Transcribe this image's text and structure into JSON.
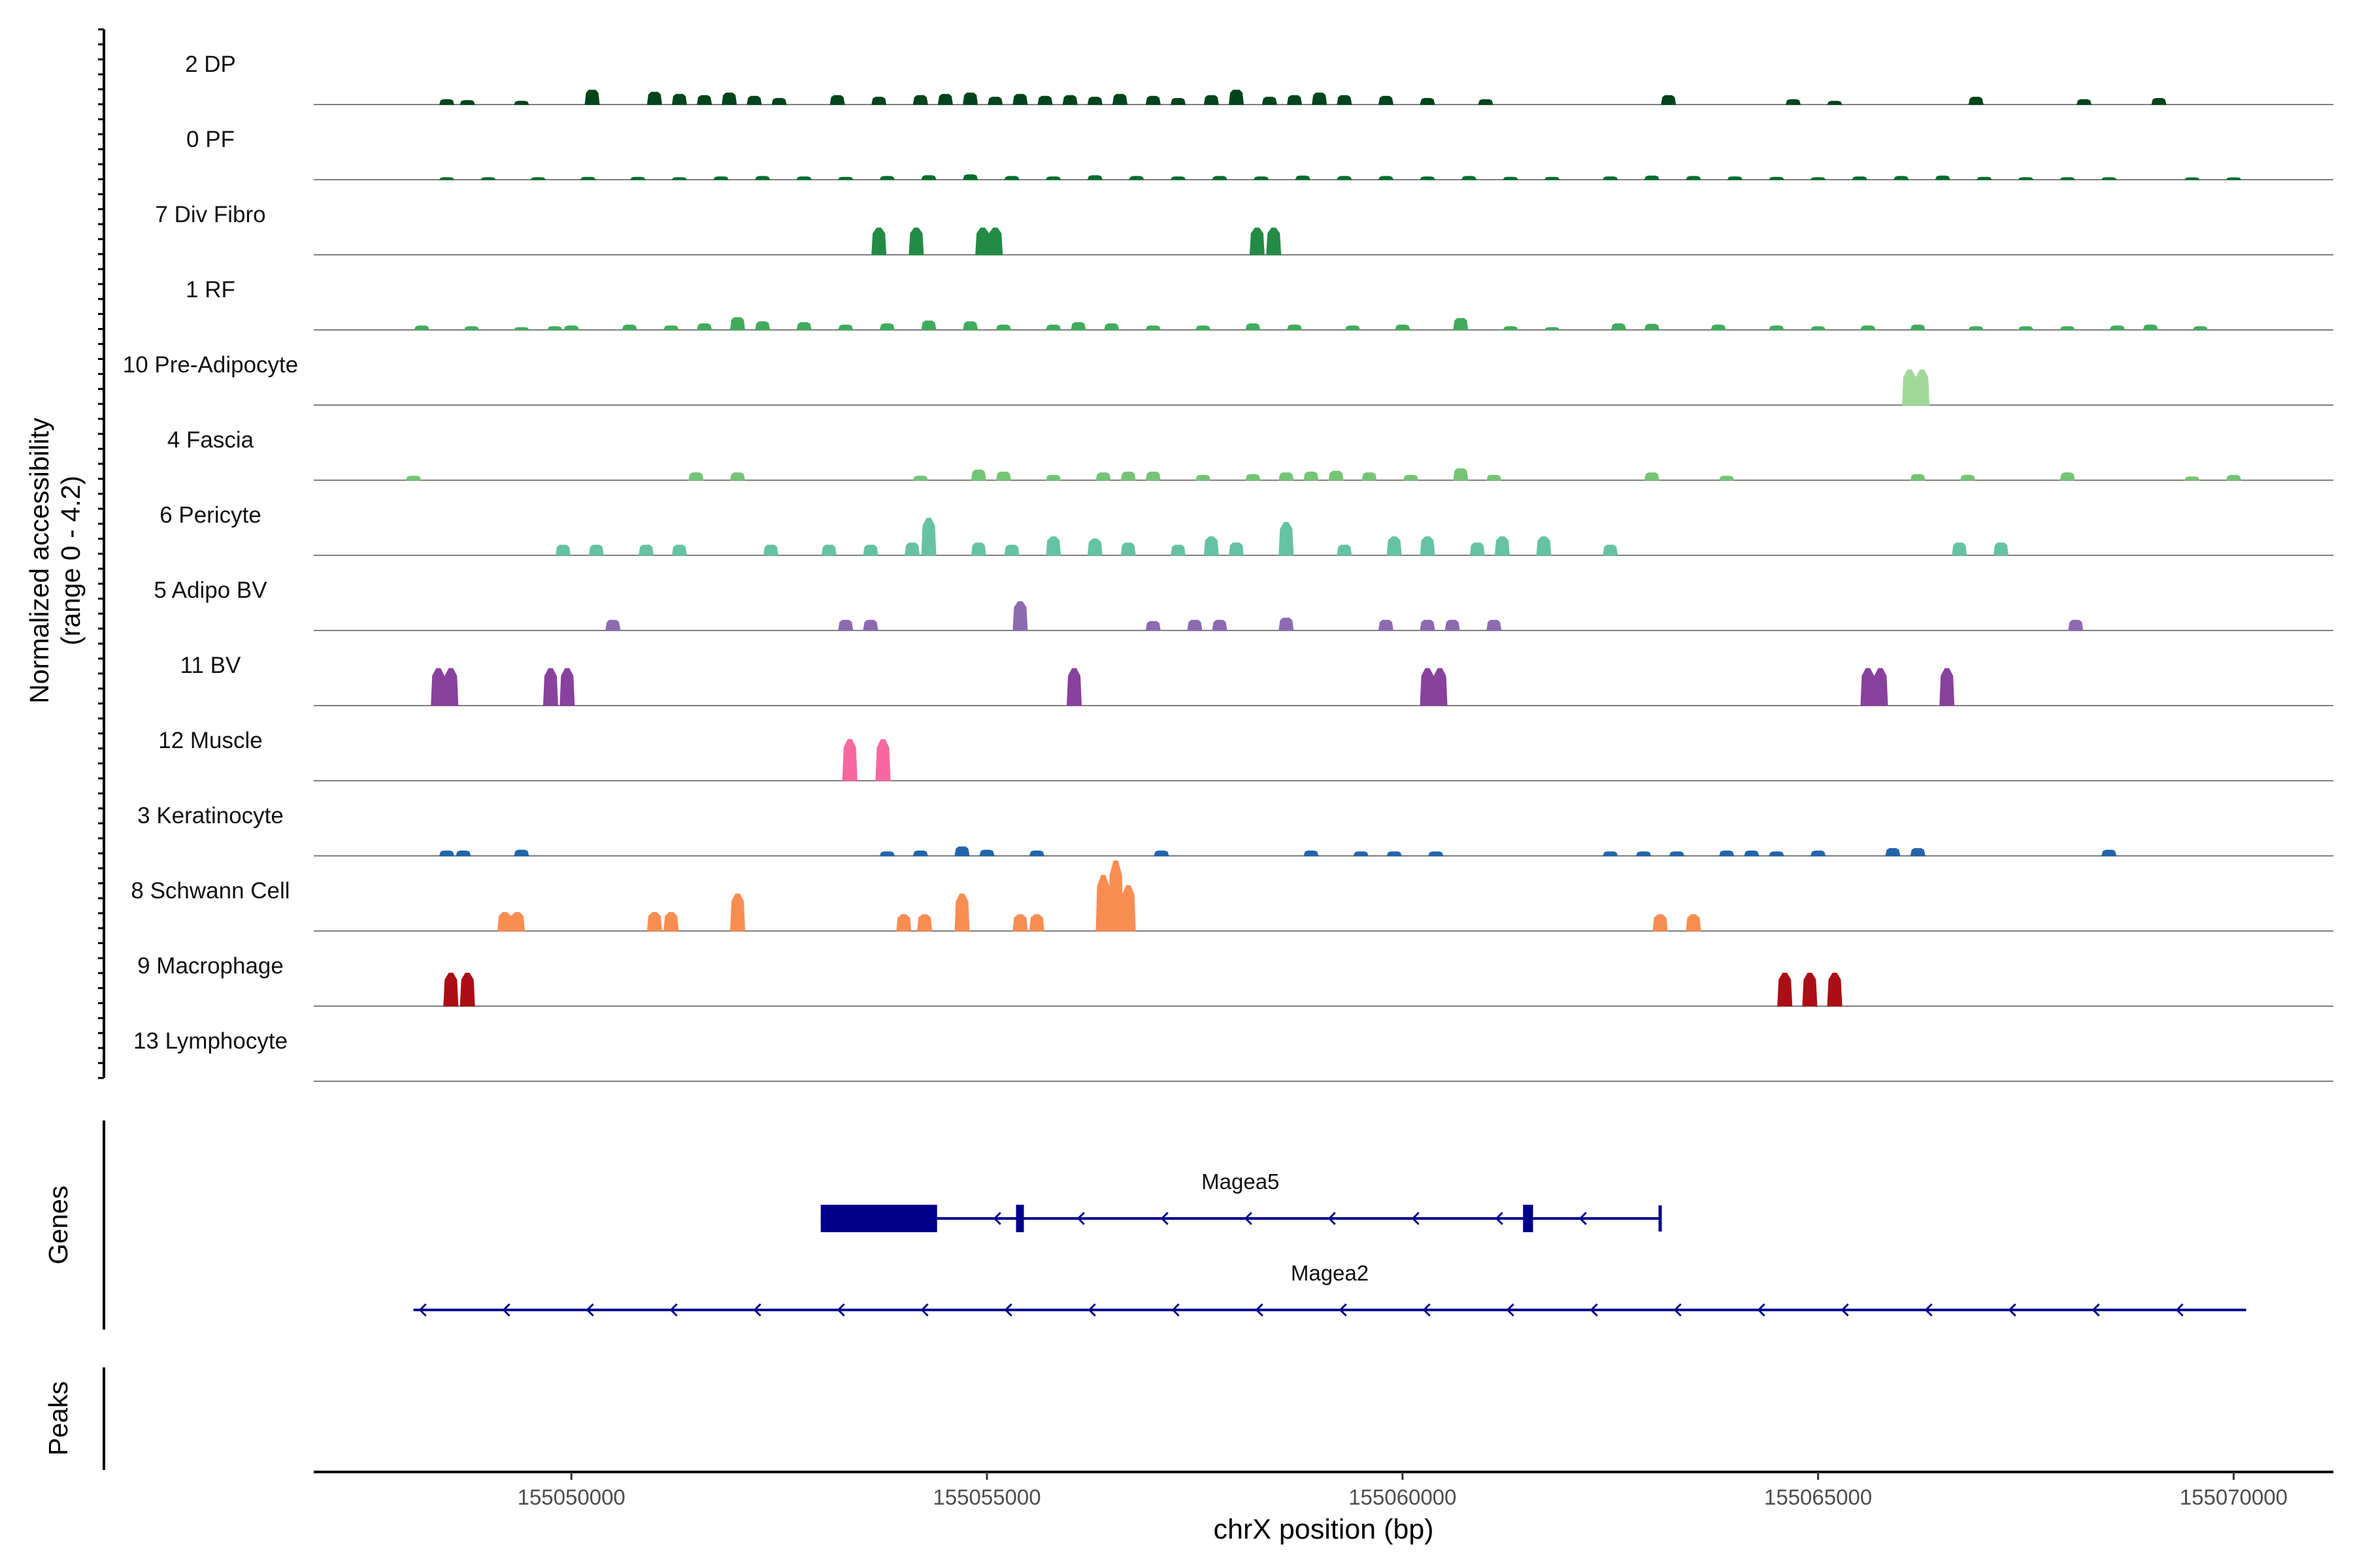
{
  "chart_data": {
    "type": "area",
    "title": "",
    "xlabel": "chrX position (bp)",
    "ylabel_line1": "Normalized accessibility",
    "ylabel_line2": "(range 0 - 4.2)",
    "y_range": [
      0,
      4.2
    ],
    "x_range": [
      155046900,
      155071200
    ],
    "x_ticks": [
      155050000,
      155055000,
      155060000,
      155065000,
      155070000
    ],
    "x_tick_labels": [
      "155050000",
      "155055000",
      "155060000",
      "155065000",
      "155070000"
    ],
    "panel_labels": {
      "genes": "Genes",
      "peaks": "Peaks"
    },
    "tracks": [
      {
        "name": "2 DP",
        "color": "#00441b",
        "peaks": [
          [
            155048500,
            0.12
          ],
          [
            155048750,
            0.1
          ],
          [
            155049400,
            0.08
          ],
          [
            155050250,
            0.35
          ],
          [
            155051000,
            0.3
          ],
          [
            155051300,
            0.25
          ],
          [
            155051600,
            0.22
          ],
          [
            155051900,
            0.28
          ],
          [
            155052200,
            0.2
          ],
          [
            155052500,
            0.15
          ],
          [
            155053200,
            0.22
          ],
          [
            155053700,
            0.18
          ],
          [
            155054200,
            0.22
          ],
          [
            155054500,
            0.25
          ],
          [
            155054800,
            0.28
          ],
          [
            155055100,
            0.18
          ],
          [
            155055400,
            0.25
          ],
          [
            155055700,
            0.2
          ],
          [
            155056000,
            0.22
          ],
          [
            155056300,
            0.18
          ],
          [
            155056600,
            0.25
          ],
          [
            155057000,
            0.2
          ],
          [
            155057300,
            0.15
          ],
          [
            155057700,
            0.22
          ],
          [
            155058000,
            0.35
          ],
          [
            155058400,
            0.18
          ],
          [
            155058700,
            0.22
          ],
          [
            155059000,
            0.28
          ],
          [
            155059300,
            0.22
          ],
          [
            155059800,
            0.2
          ],
          [
            155060300,
            0.15
          ],
          [
            155061000,
            0.12
          ],
          [
            155063200,
            0.22
          ],
          [
            155064700,
            0.12
          ],
          [
            155065200,
            0.08
          ],
          [
            155066900,
            0.18
          ],
          [
            155068200,
            0.12
          ],
          [
            155069100,
            0.15
          ]
        ]
      },
      {
        "name": "0 PF",
        "color": "#006d2c",
        "peaks": [
          [
            155048500,
            0.05
          ],
          [
            155049000,
            0.05
          ],
          [
            155049600,
            0.05
          ],
          [
            155050200,
            0.06
          ],
          [
            155050800,
            0.06
          ],
          [
            155051300,
            0.05
          ],
          [
            155051800,
            0.07
          ],
          [
            155052300,
            0.08
          ],
          [
            155052800,
            0.07
          ],
          [
            155053300,
            0.06
          ],
          [
            155053800,
            0.08
          ],
          [
            155054300,
            0.1
          ],
          [
            155054800,
            0.12
          ],
          [
            155055300,
            0.08
          ],
          [
            155055800,
            0.07
          ],
          [
            155056300,
            0.1
          ],
          [
            155056800,
            0.08
          ],
          [
            155057300,
            0.07
          ],
          [
            155057800,
            0.08
          ],
          [
            155058300,
            0.07
          ],
          [
            155058800,
            0.09
          ],
          [
            155059300,
            0.08
          ],
          [
            155059800,
            0.08
          ],
          [
            155060300,
            0.07
          ],
          [
            155060800,
            0.08
          ],
          [
            155061300,
            0.06
          ],
          [
            155061800,
            0.06
          ],
          [
            155062500,
            0.07
          ],
          [
            155063000,
            0.09
          ],
          [
            155063500,
            0.08
          ],
          [
            155064000,
            0.07
          ],
          [
            155064500,
            0.06
          ],
          [
            155065000,
            0.05
          ],
          [
            155065500,
            0.07
          ],
          [
            155066000,
            0.08
          ],
          [
            155066500,
            0.09
          ],
          [
            155067000,
            0.06
          ],
          [
            155067500,
            0.05
          ],
          [
            155068000,
            0.05
          ],
          [
            155068500,
            0.05
          ],
          [
            155069500,
            0.04
          ],
          [
            155070000,
            0.04
          ]
        ]
      },
      {
        "name": "7 Div Fibro",
        "color": "#238b45",
        "peaks": [
          [
            155053700,
            0.65
          ],
          [
            155054150,
            0.65
          ],
          [
            155054950,
            0.65
          ],
          [
            155055100,
            0.65
          ],
          [
            155058250,
            0.65
          ],
          [
            155058450,
            0.65
          ]
        ]
      },
      {
        "name": "1 RF",
        "color": "#41ab5d",
        "peaks": [
          [
            155048200,
            0.1
          ],
          [
            155048800,
            0.08
          ],
          [
            155049400,
            0.06
          ],
          [
            155049800,
            0.08
          ],
          [
            155050000,
            0.1
          ],
          [
            155050700,
            0.12
          ],
          [
            155051200,
            0.1
          ],
          [
            155051600,
            0.15
          ],
          [
            155052000,
            0.3
          ],
          [
            155052300,
            0.2
          ],
          [
            155052800,
            0.18
          ],
          [
            155053300,
            0.12
          ],
          [
            155053800,
            0.15
          ],
          [
            155054300,
            0.22
          ],
          [
            155054800,
            0.2
          ],
          [
            155055200,
            0.12
          ],
          [
            155055800,
            0.12
          ],
          [
            155056100,
            0.18
          ],
          [
            155056500,
            0.15
          ],
          [
            155057000,
            0.1
          ],
          [
            155057600,
            0.1
          ],
          [
            155058200,
            0.15
          ],
          [
            155058700,
            0.12
          ],
          [
            155059400,
            0.1
          ],
          [
            155060000,
            0.12
          ],
          [
            155060700,
            0.28
          ],
          [
            155061300,
            0.08
          ],
          [
            155061800,
            0.06
          ],
          [
            155062600,
            0.15
          ],
          [
            155063000,
            0.14
          ],
          [
            155063800,
            0.12
          ],
          [
            155064500,
            0.1
          ],
          [
            155065000,
            0.08
          ],
          [
            155065600,
            0.1
          ],
          [
            155066200,
            0.12
          ],
          [
            155066900,
            0.08
          ],
          [
            155067500,
            0.08
          ],
          [
            155068000,
            0.08
          ],
          [
            155068600,
            0.1
          ],
          [
            155069000,
            0.12
          ],
          [
            155069600,
            0.08
          ]
        ]
      },
      {
        "name": "10 Pre-Adipocyte",
        "color": "#a1d99b",
        "peaks": [
          [
            155066100,
            0.85
          ],
          [
            155066250,
            0.85
          ]
        ]
      },
      {
        "name": "4 Fascia",
        "color": "#74c476",
        "peaks": [
          [
            155048100,
            0.1
          ],
          [
            155051500,
            0.18
          ],
          [
            155052000,
            0.18
          ],
          [
            155054200,
            0.1
          ],
          [
            155054900,
            0.25
          ],
          [
            155055200,
            0.2
          ],
          [
            155055800,
            0.12
          ],
          [
            155056400,
            0.18
          ],
          [
            155056700,
            0.2
          ],
          [
            155057000,
            0.2
          ],
          [
            155057600,
            0.12
          ],
          [
            155058200,
            0.14
          ],
          [
            155058600,
            0.18
          ],
          [
            155058900,
            0.2
          ],
          [
            155059200,
            0.22
          ],
          [
            155059600,
            0.18
          ],
          [
            155060100,
            0.12
          ],
          [
            155060700,
            0.28
          ],
          [
            155061100,
            0.12
          ],
          [
            155063000,
            0.18
          ],
          [
            155063900,
            0.1
          ],
          [
            155066200,
            0.14
          ],
          [
            155066800,
            0.12
          ],
          [
            155068000,
            0.18
          ],
          [
            155069500,
            0.08
          ],
          [
            155070000,
            0.12
          ]
        ]
      },
      {
        "name": "6 Pericyte",
        "color": "#66c2a4",
        "peaks": [
          [
            155049900,
            0.25
          ],
          [
            155050300,
            0.25
          ],
          [
            155050900,
            0.25
          ],
          [
            155051300,
            0.25
          ],
          [
            155052400,
            0.25
          ],
          [
            155053100,
            0.25
          ],
          [
            155053600,
            0.25
          ],
          [
            155054100,
            0.3
          ],
          [
            155054300,
            0.9
          ],
          [
            155054900,
            0.3
          ],
          [
            155055300,
            0.25
          ],
          [
            155055800,
            0.45
          ],
          [
            155056300,
            0.4
          ],
          [
            155056700,
            0.3
          ],
          [
            155057300,
            0.25
          ],
          [
            155057700,
            0.45
          ],
          [
            155058000,
            0.3
          ],
          [
            155058600,
            0.8
          ],
          [
            155059300,
            0.25
          ],
          [
            155059900,
            0.45
          ],
          [
            155060300,
            0.45
          ],
          [
            155060900,
            0.3
          ],
          [
            155061200,
            0.45
          ],
          [
            155061700,
            0.45
          ],
          [
            155062500,
            0.25
          ],
          [
            155066700,
            0.3
          ],
          [
            155067200,
            0.3
          ]
        ]
      },
      {
        "name": "5 Adipo BV",
        "color": "#8c6bb1",
        "peaks": [
          [
            155050500,
            0.25
          ],
          [
            155053300,
            0.25
          ],
          [
            155053600,
            0.25
          ],
          [
            155055400,
            0.7
          ],
          [
            155057000,
            0.22
          ],
          [
            155057500,
            0.25
          ],
          [
            155057800,
            0.25
          ],
          [
            155058600,
            0.3
          ],
          [
            155059800,
            0.25
          ],
          [
            155060300,
            0.25
          ],
          [
            155060600,
            0.25
          ],
          [
            155061100,
            0.25
          ],
          [
            155068100,
            0.25
          ]
        ]
      },
      {
        "name": "11 BV",
        "color": "#88419d",
        "peaks": [
          [
            155048400,
            0.9
          ],
          [
            155048550,
            0.9
          ],
          [
            155049750,
            0.9
          ],
          [
            155049950,
            0.9
          ],
          [
            155056050,
            0.9
          ],
          [
            155060300,
            0.9
          ],
          [
            155060450,
            0.9
          ],
          [
            155065600,
            0.9
          ],
          [
            155065750,
            0.9
          ],
          [
            155066550,
            0.9
          ]
        ]
      },
      {
        "name": "12 Muscle",
        "color": "#f768a1",
        "peaks": [
          [
            155053350,
            1.0
          ],
          [
            155053750,
            1.0
          ]
        ]
      },
      {
        "name": "3 Keratinocyte",
        "color": "#2166ac",
        "peaks": [
          [
            155048500,
            0.12
          ],
          [
            155048700,
            0.12
          ],
          [
            155049400,
            0.14
          ],
          [
            155053800,
            0.1
          ],
          [
            155054200,
            0.12
          ],
          [
            155054700,
            0.22
          ],
          [
            155055000,
            0.14
          ],
          [
            155055600,
            0.12
          ],
          [
            155057100,
            0.12
          ],
          [
            155058900,
            0.12
          ],
          [
            155059500,
            0.1
          ],
          [
            155059900,
            0.1
          ],
          [
            155060400,
            0.1
          ],
          [
            155062500,
            0.1
          ],
          [
            155062900,
            0.1
          ],
          [
            155063300,
            0.1
          ],
          [
            155063900,
            0.12
          ],
          [
            155064200,
            0.12
          ],
          [
            155064500,
            0.1
          ],
          [
            155065000,
            0.12
          ],
          [
            155065900,
            0.18
          ],
          [
            155066200,
            0.18
          ],
          [
            155068500,
            0.14
          ]
        ]
      },
      {
        "name": "8 Schwann Cell",
        "color": "#f88d52",
        "peaks": [
          [
            155049200,
            0.45
          ],
          [
            155049350,
            0.45
          ],
          [
            155051000,
            0.45
          ],
          [
            155051200,
            0.45
          ],
          [
            155052000,
            0.9
          ],
          [
            155054000,
            0.4
          ],
          [
            155054250,
            0.4
          ],
          [
            155054700,
            0.9
          ],
          [
            155055400,
            0.4
          ],
          [
            155055600,
            0.4
          ],
          [
            155056400,
            1.35
          ],
          [
            155056550,
            1.7
          ],
          [
            155056700,
            1.1
          ],
          [
            155063100,
            0.4
          ],
          [
            155063500,
            0.4
          ]
        ]
      },
      {
        "name": "9 Macrophage",
        "color": "#ab0e14",
        "peaks": [
          [
            155048550,
            0.8
          ],
          [
            155048750,
            0.8
          ],
          [
            155064600,
            0.8
          ],
          [
            155064900,
            0.8
          ],
          [
            155065200,
            0.8
          ]
        ]
      },
      {
        "name": "13 Lymphocyte",
        "color": "#4d4d4d",
        "peaks": []
      }
    ],
    "genes": [
      {
        "name": "Magea5",
        "start": 155053000,
        "end": 155063100,
        "strand": "-",
        "exons": [
          [
            155053000,
            155054400
          ],
          [
            155055350,
            155055440
          ],
          [
            155061450,
            155061570
          ]
        ]
      },
      {
        "name": "Magea2",
        "start": 155048100,
        "end": 155070150,
        "strand": "-",
        "exons": []
      }
    ],
    "peaks_track": []
  }
}
